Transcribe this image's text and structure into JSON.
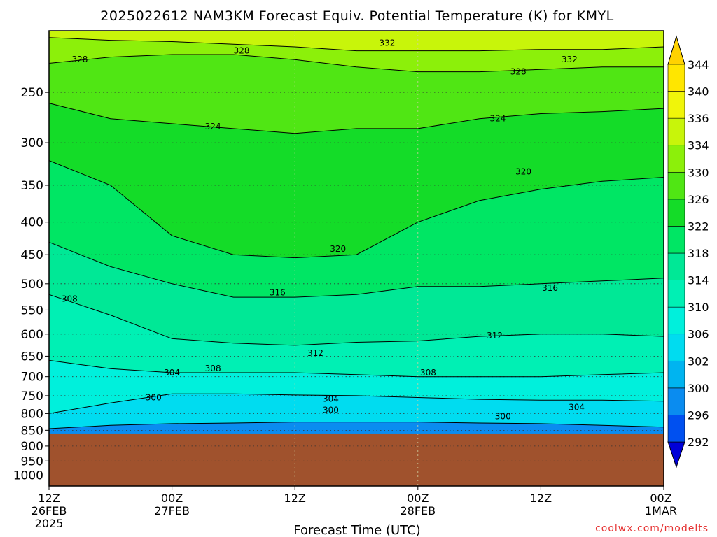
{
  "chart_data": {
    "type": "heatmap",
    "title": "2025022612 NAM3KM Forecast Equiv. Potential Temperature (K) for KMYL",
    "xlabel": "Forecast Time (UTC)",
    "ylabel": "",
    "watermark": "coolwx.com/modelts",
    "x_ticks": [
      {
        "hours": 0,
        "lines": [
          "12Z",
          "26FEB",
          "2025"
        ]
      },
      {
        "hours": 12,
        "lines": [
          "00Z",
          "27FEB"
        ]
      },
      {
        "hours": 24,
        "lines": [
          "12Z"
        ]
      },
      {
        "hours": 36,
        "lines": [
          "00Z",
          "28FEB"
        ]
      },
      {
        "hours": 48,
        "lines": [
          "12Z"
        ]
      },
      {
        "hours": 60,
        "lines": [
          "00Z",
          "1MAR"
        ]
      }
    ],
    "xlim_hours": [
      0,
      60
    ],
    "y_ticks": [
      250,
      300,
      350,
      400,
      450,
      500,
      550,
      600,
      650,
      700,
      750,
      800,
      850,
      900,
      950,
      1000
    ],
    "ylim_hPa": [
      1040,
      200
    ],
    "y_scale": "log-pressure",
    "ground_below_hPa": 860,
    "ground_color": "#a0522d",
    "colorbar": {
      "levels": [
        292,
        296,
        300,
        302,
        306,
        310,
        314,
        318,
        322,
        326,
        330,
        334,
        336,
        340,
        344
      ],
      "colors": [
        "#0000d8",
        "#0050f0",
        "#0a8cf0",
        "#00b4f0",
        "#00dcf0",
        "#00f0dc",
        "#00f0b4",
        "#00e896",
        "#00e664",
        "#14dc28",
        "#50e614",
        "#8cf00a",
        "#c8f50a",
        "#f0f50a",
        "#ffe600",
        "#ffd200"
      ]
    },
    "series": [
      {
        "level": 300,
        "x": [
          0,
          6,
          12,
          18,
          24,
          30,
          36,
          42,
          48,
          54,
          60
        ],
        "p": [
          845,
          835,
          830,
          828,
          825,
          825,
          825,
          828,
          830,
          835,
          840
        ]
      },
      {
        "level": 304,
        "x": [
          0,
          6,
          12,
          18,
          24,
          30,
          36,
          42,
          48,
          54,
          60
        ],
        "p": [
          800,
          770,
          745,
          745,
          748,
          750,
          755,
          760,
          762,
          762,
          765
        ]
      },
      {
        "level": 308,
        "x": [
          0,
          6,
          12,
          18,
          24,
          30,
          36,
          42,
          48,
          54,
          60
        ],
        "p": [
          660,
          680,
          690,
          690,
          690,
          695,
          700,
          700,
          700,
          695,
          690
        ]
      },
      {
        "level": 312,
        "x": [
          0,
          6,
          12,
          18,
          24,
          30,
          36,
          42,
          48,
          54,
          60
        ],
        "p": [
          520,
          560,
          610,
          620,
          625,
          618,
          615,
          605,
          600,
          600,
          605
        ]
      },
      {
        "level": 316,
        "x": [
          0,
          6,
          12,
          18,
          24,
          30,
          36,
          42,
          48,
          54,
          60
        ],
        "p": [
          430,
          470,
          500,
          525,
          525,
          520,
          505,
          505,
          500,
          495,
          490
        ]
      },
      {
        "level": 320,
        "x": [
          0,
          6,
          12,
          18,
          24,
          30,
          36,
          42,
          48,
          54,
          60
        ],
        "p": [
          320,
          350,
          420,
          450,
          455,
          450,
          400,
          370,
          355,
          345,
          340
        ]
      },
      {
        "level": 324,
        "x": [
          0,
          6,
          12,
          18,
          24,
          30,
          36,
          42,
          48,
          54,
          60
        ],
        "p": [
          260,
          275,
          280,
          285,
          290,
          285,
          285,
          275,
          270,
          268,
          265
        ]
      },
      {
        "level": 328,
        "x": [
          0,
          6,
          12,
          18,
          24,
          30,
          36,
          42,
          48,
          54,
          60
        ],
        "p": [
          225,
          220,
          218,
          218,
          222,
          228,
          232,
          232,
          230,
          228,
          228
        ]
      },
      {
        "level": 332,
        "x": [
          0,
          6,
          12,
          18,
          24,
          30,
          36,
          42,
          48,
          54,
          60
        ],
        "p": [
          205,
          207,
          208,
          210,
          212,
          215,
          215,
          215,
          214,
          214,
          212
        ]
      }
    ],
    "contour_labels": [
      {
        "text": "328",
        "x": 3.0,
        "p": 222
      },
      {
        "text": "328",
        "x": 18.8,
        "p": 215
      },
      {
        "text": "332",
        "x": 33.0,
        "p": 209
      },
      {
        "text": "332",
        "x": 50.8,
        "p": 222
      },
      {
        "text": "328",
        "x": 45.8,
        "p": 232
      },
      {
        "text": "324",
        "x": 16.0,
        "p": 283
      },
      {
        "text": "324",
        "x": 43.8,
        "p": 275
      },
      {
        "text": "320",
        "x": 46.3,
        "p": 333
      },
      {
        "text": "320",
        "x": 28.2,
        "p": 441
      },
      {
        "text": "316",
        "x": 22.3,
        "p": 516
      },
      {
        "text": "316",
        "x": 48.9,
        "p": 508
      },
      {
        "text": "308",
        "x": 2.0,
        "p": 528
      },
      {
        "text": "312",
        "x": 43.5,
        "p": 603
      },
      {
        "text": "312",
        "x": 26.0,
        "p": 643
      },
      {
        "text": "304",
        "x": 12.0,
        "p": 690
      },
      {
        "text": "308",
        "x": 16.0,
        "p": 680
      },
      {
        "text": "308",
        "x": 37.0,
        "p": 690
      },
      {
        "text": "300",
        "x": 10.2,
        "p": 755
      },
      {
        "text": "304",
        "x": 27.5,
        "p": 759
      },
      {
        "text": "300",
        "x": 27.5,
        "p": 790
      },
      {
        "text": "304",
        "x": 51.5,
        "p": 782
      },
      {
        "text": "300",
        "x": 44.3,
        "p": 808
      }
    ]
  }
}
